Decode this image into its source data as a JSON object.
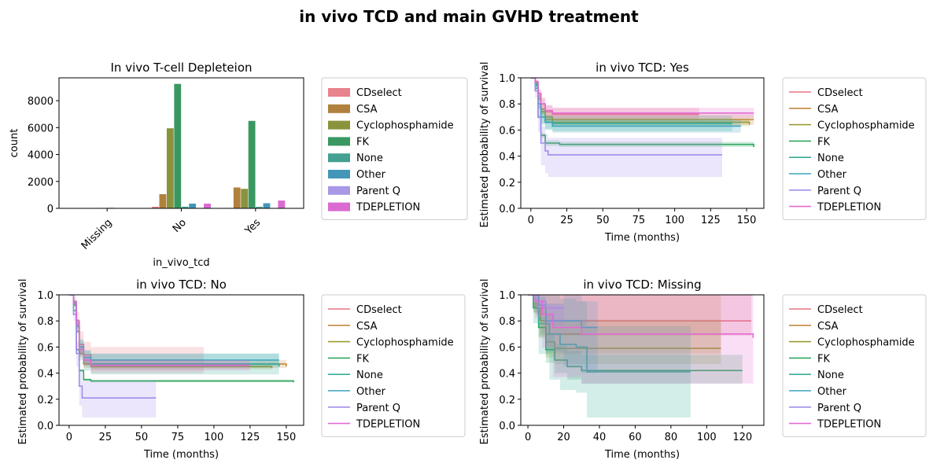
{
  "figure": {
    "title": "in vivo TCD and main GVHD treatment"
  },
  "legend_entries": [
    "CDselect",
    "CSA",
    "Cyclophosphamide",
    "FK",
    "None",
    "Other",
    "Parent Q",
    "TDEPLETION"
  ],
  "colors": [
    "#e67584",
    "#c38a3d",
    "#9a9a31",
    "#33a763",
    "#36ad98",
    "#3aa4c0",
    "#a28deb",
    "#e46ad4"
  ],
  "bar_colors": [
    "#e8828d",
    "#b0803d",
    "#8a923c",
    "#3b9760",
    "#44a090",
    "#4496b8",
    "#a898e6",
    "#da6ad2"
  ],
  "chart_data": [
    {
      "type": "bar",
      "title": "In vivo T-cell Depleteion",
      "xlabel": "in_vivo_tcd",
      "ylabel": "count",
      "categories": [
        "Missing",
        "No",
        "Yes"
      ],
      "ylim": [
        0,
        9700
      ],
      "yticks": [
        0,
        2000,
        4000,
        6000,
        8000
      ],
      "legend": "right-outside",
      "series": [
        {
          "name": "CDselect",
          "values": [
            5,
            120,
            30
          ]
        },
        {
          "name": "CSA",
          "values": [
            10,
            1050,
            1550
          ]
        },
        {
          "name": "Cyclophosphamide",
          "values": [
            8,
            5950,
            1450
          ]
        },
        {
          "name": "FK",
          "values": [
            30,
            9250,
            6500
          ]
        },
        {
          "name": "None",
          "values": [
            40,
            120,
            110
          ]
        },
        {
          "name": "Other",
          "values": [
            20,
            350,
            380
          ]
        },
        {
          "name": "Parent Q",
          "values": [
            3,
            30,
            20
          ]
        },
        {
          "name": "TDEPLETION",
          "values": [
            15,
            350,
            580
          ]
        }
      ]
    },
    {
      "type": "line",
      "title": "in vivo TCD: Yes",
      "xlabel": "Time (months)",
      "ylabel": "Estimated probability of survival",
      "xlim": [
        -7,
        162
      ],
      "ylim": [
        0,
        1
      ],
      "xticks": [
        0,
        25,
        50,
        75,
        100,
        125,
        150
      ],
      "yticks": [
        0.0,
        0.2,
        0.4,
        0.6,
        0.8,
        1.0
      ],
      "legend": "right-outside",
      "series": [
        {
          "name": "CDselect",
          "points": [
            [
              0,
              1
            ],
            [
              3,
              0.97
            ],
            [
              5,
              0.88
            ],
            [
              7,
              0.8
            ],
            [
              10,
              0.74
            ],
            [
              15,
              0.72
            ],
            [
              117,
              0.72
            ]
          ],
          "band": [
            0.05,
            0.05
          ]
        },
        {
          "name": "CSA",
          "points": [
            [
              0,
              1
            ],
            [
              3,
              0.96
            ],
            [
              5,
              0.86
            ],
            [
              7,
              0.76
            ],
            [
              10,
              0.7
            ],
            [
              15,
              0.68
            ],
            [
              155,
              0.68
            ]
          ],
          "band": [
            0.04,
            0.04
          ]
        },
        {
          "name": "Cyclophosphamide",
          "points": [
            [
              0,
              1
            ],
            [
              3,
              0.95
            ],
            [
              5,
              0.84
            ],
            [
              7,
              0.74
            ],
            [
              10,
              0.68
            ],
            [
              15,
              0.66
            ],
            [
              152,
              0.64
            ]
          ],
          "band": [
            0.03,
            0.03
          ]
        },
        {
          "name": "FK",
          "points": [
            [
              0,
              1
            ],
            [
              3,
              0.92
            ],
            [
              5,
              0.7
            ],
            [
              7,
              0.56
            ],
            [
              10,
              0.5
            ],
            [
              20,
              0.49
            ],
            [
              155,
              0.47
            ]
          ],
          "band": [
            0.02,
            0.02
          ]
        },
        {
          "name": "None",
          "points": [
            [
              0,
              1
            ],
            [
              3,
              0.95
            ],
            [
              5,
              0.8
            ],
            [
              7,
              0.7
            ],
            [
              10,
              0.66
            ],
            [
              15,
              0.65
            ],
            [
              140,
              0.65
            ]
          ],
          "band": [
            0.06,
            0.06
          ]
        },
        {
          "name": "Other",
          "points": [
            [
              0,
              1
            ],
            [
              3,
              0.94
            ],
            [
              5,
              0.8
            ],
            [
              7,
              0.7
            ],
            [
              10,
              0.66
            ],
            [
              15,
              0.63
            ],
            [
              146,
              0.63
            ]
          ],
          "band": [
            0.05,
            0.05
          ]
        },
        {
          "name": "Parent Q",
          "points": [
            [
              0,
              1
            ],
            [
              3,
              0.9
            ],
            [
              5,
              0.7
            ],
            [
              7,
              0.5
            ],
            [
              10,
              0.44
            ],
            [
              12,
              0.41
            ],
            [
              133,
              0.41
            ]
          ],
          "band": [
            0.17,
            0.13
          ]
        },
        {
          "name": "TDEPLETION",
          "points": [
            [
              0,
              1
            ],
            [
              3,
              0.97
            ],
            [
              5,
              0.88
            ],
            [
              7,
              0.8
            ],
            [
              10,
              0.75
            ],
            [
              15,
              0.73
            ],
            [
              155,
              0.73
            ]
          ],
          "band": [
            0.04,
            0.04
          ]
        }
      ]
    },
    {
      "type": "line",
      "title": "in vivo TCD: No",
      "xlabel": "Time (months)",
      "ylabel": "Estimated probability of survival",
      "xlim": [
        -7,
        162
      ],
      "ylim": [
        0,
        1
      ],
      "xticks": [
        0,
        25,
        50,
        75,
        100,
        125,
        150
      ],
      "yticks": [
        0.0,
        0.2,
        0.4,
        0.6,
        0.8,
        1.0
      ],
      "legend": "right-outside",
      "series": [
        {
          "name": "CDselect",
          "points": [
            [
              0,
              1
            ],
            [
              3,
              0.95
            ],
            [
              5,
              0.8
            ],
            [
              7,
              0.62
            ],
            [
              10,
              0.54
            ],
            [
              15,
              0.5
            ],
            [
              93,
              0.5
            ]
          ],
          "band": [
            0.1,
            0.1
          ]
        },
        {
          "name": "CSA",
          "points": [
            [
              0,
              1
            ],
            [
              3,
              0.93
            ],
            [
              5,
              0.76
            ],
            [
              7,
              0.58
            ],
            [
              10,
              0.5
            ],
            [
              15,
              0.47
            ],
            [
              150,
              0.45
            ]
          ],
          "band": [
            0.03,
            0.03
          ]
        },
        {
          "name": "Cyclophosphamide",
          "points": [
            [
              0,
              1
            ],
            [
              3,
              0.92
            ],
            [
              5,
              0.72
            ],
            [
              7,
              0.55
            ],
            [
              10,
              0.47
            ],
            [
              15,
              0.45
            ],
            [
              140,
              0.44
            ]
          ],
          "band": [
            0.02,
            0.02
          ]
        },
        {
          "name": "FK",
          "points": [
            [
              0,
              1
            ],
            [
              3,
              0.88
            ],
            [
              5,
              0.58
            ],
            [
              7,
              0.42
            ],
            [
              10,
              0.35
            ],
            [
              15,
              0.34
            ],
            [
              155,
              0.33
            ]
          ],
          "band": [
            0.01,
            0.01
          ]
        },
        {
          "name": "None",
          "points": [
            [
              0,
              1
            ],
            [
              3,
              0.93
            ],
            [
              5,
              0.76
            ],
            [
              7,
              0.58
            ],
            [
              10,
              0.5
            ],
            [
              15,
              0.47
            ],
            [
              145,
              0.45
            ]
          ],
          "band": [
            0.08,
            0.08
          ]
        },
        {
          "name": "Other",
          "points": [
            [
              0,
              1
            ],
            [
              3,
              0.94
            ],
            [
              5,
              0.78
            ],
            [
              7,
              0.6
            ],
            [
              10,
              0.52
            ],
            [
              15,
              0.5
            ],
            [
              145,
              0.5
            ]
          ],
          "band": [
            0.05,
            0.05
          ]
        },
        {
          "name": "Parent Q",
          "points": [
            [
              0,
              1
            ],
            [
              3,
              0.85
            ],
            [
              5,
              0.55
            ],
            [
              7,
              0.3
            ],
            [
              9,
              0.21
            ],
            [
              60,
              0.21
            ]
          ],
          "band": [
            0.15,
            0.13
          ]
        },
        {
          "name": "TDEPLETION",
          "points": [
            [
              0,
              1
            ],
            [
              3,
              0.94
            ],
            [
              5,
              0.78
            ],
            [
              7,
              0.58
            ],
            [
              10,
              0.5
            ],
            [
              15,
              0.46
            ],
            [
              125,
              0.46
            ]
          ],
          "band": [
            0.04,
            0.04
          ]
        }
      ]
    },
    {
      "type": "line",
      "title": "in vivo TCD: Missing",
      "xlabel": "Time (months)",
      "ylabel": "Estimated probability of survival",
      "xlim": [
        -4,
        132
      ],
      "ylim": [
        0,
        1
      ],
      "xticks": [
        0,
        20,
        40,
        60,
        80,
        100,
        120
      ],
      "yticks": [
        0.0,
        0.2,
        0.4,
        0.6,
        0.8,
        1.0
      ],
      "legend": "right-outside",
      "series": [
        {
          "name": "CDselect",
          "points": [
            [
              0,
              1
            ],
            [
              5,
              0.9
            ],
            [
              10,
              0.8
            ],
            [
              125,
              0.8
            ]
          ],
          "band": [
            0.17,
            0.6
          ]
        },
        {
          "name": "CSA",
          "points": [
            [
              0,
              1
            ],
            [
              4,
              0.9
            ],
            [
              7,
              0.8
            ],
            [
              10,
              0.7
            ],
            [
              108,
              0.7
            ]
          ],
          "band": [
            0.15,
            0.35
          ]
        },
        {
          "name": "Cyclophosphamide",
          "points": [
            [
              0,
              1
            ],
            [
              3,
              0.9
            ],
            [
              6,
              0.75
            ],
            [
              10,
              0.64
            ],
            [
              15,
              0.59
            ],
            [
              108,
              0.59
            ]
          ],
          "band": [
            0.12,
            0.22
          ]
        },
        {
          "name": "FK",
          "points": [
            [
              0,
              1
            ],
            [
              3,
              0.9
            ],
            [
              6,
              0.75
            ],
            [
              10,
              0.58
            ],
            [
              15,
              0.5
            ],
            [
              22,
              0.45
            ],
            [
              30,
              0.42
            ],
            [
              120,
              0.42
            ]
          ],
          "band": [
            0.1,
            0.12
          ]
        },
        {
          "name": "None",
          "points": [
            [
              0,
              1
            ],
            [
              3,
              0.9
            ],
            [
              6,
              0.78
            ],
            [
              12,
              0.7
            ],
            [
              18,
              0.62
            ],
            [
              27,
              0.6
            ],
            [
              33,
              0.41
            ],
            [
              91,
              0.41
            ]
          ],
          "band": [
            0.35,
            0.35
          ]
        },
        {
          "name": "Other",
          "points": [
            [
              0,
              1
            ],
            [
              6,
              0.92
            ],
            [
              10,
              0.8
            ],
            [
              20,
              0.8
            ],
            [
              30,
              0.75
            ],
            [
              39,
              0.75
            ]
          ],
          "band": [
            0.35,
            0.2
          ]
        },
        {
          "name": "Parent Q",
          "points": [
            [
              0,
              1
            ],
            [
              5,
              0.95
            ],
            [
              10,
              0.9
            ],
            [
              20,
              0.9
            ]
          ],
          "band": [
            0.2,
            0.05
          ]
        },
        {
          "name": "TDEPLETION",
          "points": [
            [
              0,
              1
            ],
            [
              4,
              0.95
            ],
            [
              8,
              0.85
            ],
            [
              14,
              0.75
            ],
            [
              30,
              0.7
            ],
            [
              126,
              0.67
            ]
          ],
          "band": [
            0.38,
            0.3
          ]
        }
      ]
    }
  ]
}
